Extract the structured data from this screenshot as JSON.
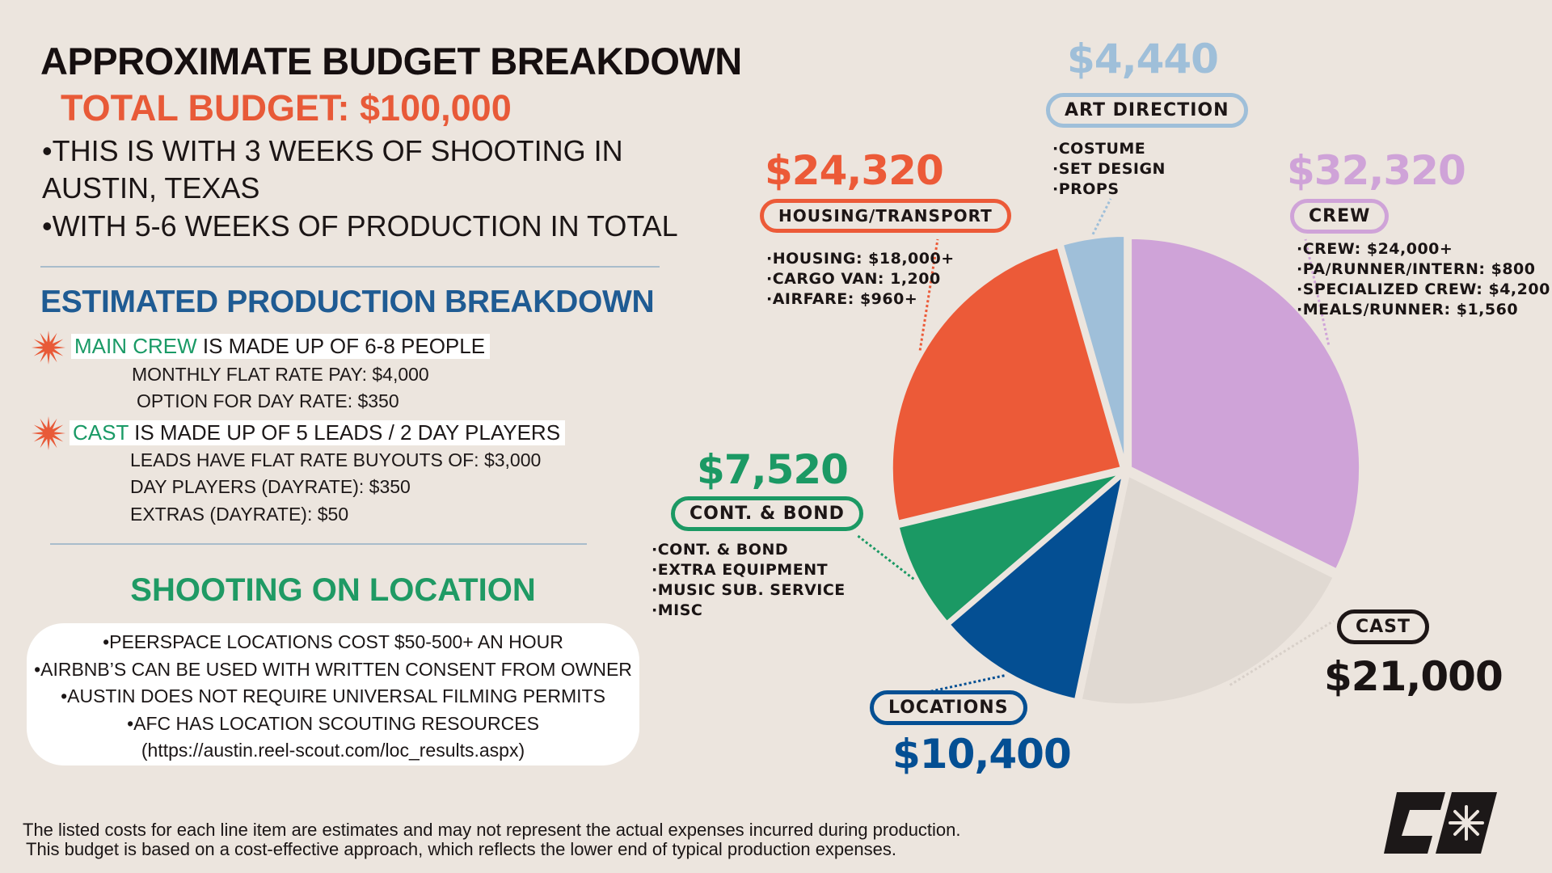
{
  "header": {
    "title": "APPROXIMATE BUDGET BREAKDOWN",
    "total_label": "TOTAL BUDGET",
    "total_sep": ":",
    "total_value": "$100,000",
    "bullets": [
      "•THIS IS WITH 3 WEEKS OF SHOOTING IN AUSTIN, TEXAS",
      "•WITH 5-6 WEEKS OF PRODUCTION IN TOTAL"
    ]
  },
  "production": {
    "heading": "ESTIMATED PRODUCTION BREAKDOWN",
    "crew": {
      "keyword": "MAIN CREW",
      "rest": " IS MADE UP OF 6-8 PEOPLE",
      "details": [
        "MONTHLY FLAT RATE PAY: $4,000",
        "OPTION FOR DAY RATE: $350"
      ]
    },
    "cast": {
      "keyword": "CAST",
      "rest": " IS MADE UP OF 5 LEADS / 2 DAY PLAYERS",
      "details": [
        "LEADS HAVE FLAT RATE BUYOUTS OF: $3,000",
        "DAY PLAYERS (DAYRATE): $350",
        "EXTRAS (DAYRATE): $50"
      ]
    }
  },
  "location": {
    "heading": "SHOOTING ON LOCATION",
    "items": [
      "•PEERSPACE LOCATIONS COST $50-500+ AN HOUR",
      "•AIRBNB’S CAN BE USED WITH WRITTEN CONSENT FROM OWNER",
      "•AUSTIN DOES NOT REQUIRE UNIVERSAL FILMING PERMITS",
      "•AFC HAS LOCATION SCOUTING RESOURCES",
      "(https://austin.reel-scout.com/loc_results.aspx)"
    ]
  },
  "disclaimer": [
    "The listed costs for each line item are estimates and may not represent the actual expenses incurred during production.",
    "This budget is based on a cost-effective approach, which reflects the lower end of typical production expenses."
  ],
  "colors": {
    "background": "#ece5de",
    "orange": "#e85a38",
    "blue": "#1f5b93",
    "green": "#1a9a66"
  },
  "icons": {
    "bullet_marker": "starburst-icon",
    "brand": "logo-icon"
  },
  "chart_data": {
    "type": "pie",
    "unit": "USD",
    "start_angle_deg": 0,
    "direction": "clockwise",
    "slices": [
      {
        "label": "CREW",
        "value": 32320,
        "display": "$32,320",
        "color": "#cfa3d8",
        "items": [
          "·CREW: $24,000+",
          "·PA/RUNNER/INTERN: $800",
          "·SPECIALIZED CREW: $4,200",
          "·MEALS/RUNNER: $1,560"
        ]
      },
      {
        "label": "CAST",
        "value": 21000,
        "display": "$21,000",
        "color": "#e0d9d2",
        "items": []
      },
      {
        "label": "LOCATIONS",
        "value": 10400,
        "display": "$10,400",
        "color": "#044f93",
        "items": []
      },
      {
        "label": "CONT. & BOND",
        "value": 7520,
        "display": "$7,520",
        "color": "#1b9964",
        "items": [
          "·CONT. & BOND",
          "·EXTRA EQUIPMENT",
          "·MUSIC SUB. SERVICE",
          "·MISC"
        ]
      },
      {
        "label": "HOUSING/TRANSPORT",
        "value": 24320,
        "display": "$24,320",
        "color": "#ec5a38",
        "items": [
          "·HOUSING: $18,000+",
          "·CARGO VAN: 1,200",
          "·AIRFARE: $960+"
        ]
      },
      {
        "label": "ART DIRECTION",
        "value": 4440,
        "display": "$4,440",
        "color": "#9fbfd9",
        "items": [
          "·COSTUME",
          "·SET DESIGN",
          "·PROPS"
        ]
      }
    ]
  }
}
